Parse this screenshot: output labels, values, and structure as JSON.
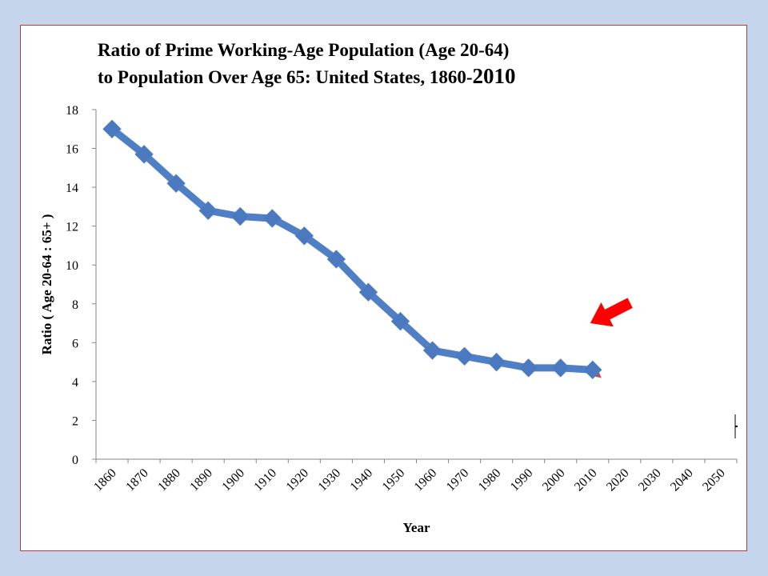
{
  "chart_data": {
    "type": "line",
    "title_line1": "Ratio of Prime Working-Age Population (Age 20-64)",
    "title_line2_prefix": "to Population Over Age 65: United States, 1860-",
    "title_line2_suffix": "2010",
    "xlabel": "Year",
    "ylabel": "Ratio ( Age 20-64 : 65+ )",
    "ylim": [
      0,
      18
    ],
    "yticks": [
      0,
      2,
      4,
      6,
      8,
      10,
      12,
      14,
      16,
      18
    ],
    "categories": [
      "1860",
      "1870",
      "1880",
      "1890",
      "1900",
      "1910",
      "1920",
      "1930",
      "1940",
      "1950",
      "1960",
      "1970",
      "1980",
      "1990",
      "2000",
      "2010",
      "2020",
      "2030",
      "2040",
      "2050"
    ],
    "series": [
      {
        "values": [
          17.0,
          15.7,
          14.2,
          12.8,
          12.5,
          12.4,
          11.5,
          10.3,
          8.6,
          7.1,
          5.6,
          5.3,
          5.0,
          4.7,
          4.7,
          4.6,
          null,
          null,
          null,
          null
        ]
      }
    ],
    "grid": false,
    "legend": "none"
  },
  "colors": {
    "background": "#c5d5ec",
    "series_line": "#4f7fc4",
    "marker": "#4a79bf",
    "arrow": "#ff0000"
  },
  "annotation": {
    "arrow_target_year": "2010"
  }
}
